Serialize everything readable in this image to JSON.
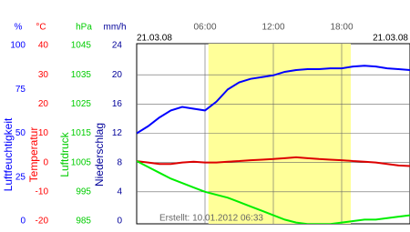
{
  "chart_data": {
    "type": "line",
    "date_left": "21.03.08",
    "date_right": "21.03.08",
    "created": "Erstellt: 10.01.2012 06:33",
    "xlim": [
      0,
      24
    ],
    "xticks": [
      {
        "value": 6,
        "label": "06:00"
      },
      {
        "value": 12,
        "label": "12:00"
      },
      {
        "value": 18,
        "label": "18:00"
      }
    ],
    "daylight": [
      6.3,
      18.8
    ],
    "daylight_color": "#ffff99",
    "grid": true,
    "axes": [
      {
        "unit": "%",
        "label": "Luftfeuchtigkeit",
        "color": "#0000ff",
        "ylim": [
          0,
          100
        ],
        "yticks": [
          0,
          25,
          50,
          75,
          100
        ]
      },
      {
        "unit": "°C",
        "label": "Temperatur",
        "color": "#ff0000",
        "ylim": [
          -20,
          40
        ],
        "yticks": [
          -20,
          -10,
          0,
          10,
          20,
          30,
          40
        ]
      },
      {
        "unit": "hPa",
        "label": "Luftdruck",
        "color": "#00cc00",
        "ylim": [
          985,
          1045
        ],
        "yticks": [
          985,
          995,
          1005,
          1015,
          1025,
          1035,
          1045
        ]
      },
      {
        "unit": "mm/h",
        "label": "Niederschlag",
        "color": "#000099",
        "ylim": [
          0,
          24
        ],
        "yticks": [
          0,
          4,
          8,
          12,
          16,
          20,
          24
        ]
      }
    ],
    "x": [
      0,
      1,
      2,
      3,
      4,
      5,
      6,
      7,
      8,
      9,
      10,
      11,
      12,
      13,
      14,
      15,
      16,
      17,
      18,
      19,
      20,
      21,
      22,
      23,
      24
    ],
    "series": [
      {
        "axis": 0,
        "color": "#0000ff",
        "values": [
          50,
          54,
          59,
          63,
          65,
          64,
          63,
          68,
          75,
          79,
          81,
          82,
          83,
          85,
          86,
          86.5,
          86.5,
          87,
          87,
          88,
          88.5,
          88,
          87,
          86.5,
          86
        ]
      },
      {
        "axis": 1,
        "color": "#dd0000",
        "values": [
          0.5,
          0,
          -0.5,
          -0.5,
          0,
          0.3,
          0,
          0,
          0.3,
          0.5,
          0.8,
          1,
          1.2,
          1.5,
          1.8,
          1.5,
          1.2,
          1,
          0.8,
          0.5,
          0.3,
          0,
          -0.5,
          -1,
          -1.2
        ]
      },
      {
        "axis": 2,
        "color": "#00ee00",
        "values": [
          1005.5,
          1003.5,
          1001.5,
          999.5,
          998,
          996.5,
          995,
          994,
          993,
          991.5,
          990,
          988.5,
          987,
          985.5,
          984.5,
          984,
          984,
          984,
          984.5,
          985,
          985.5,
          985.5,
          986,
          986.5,
          987
        ]
      }
    ]
  }
}
